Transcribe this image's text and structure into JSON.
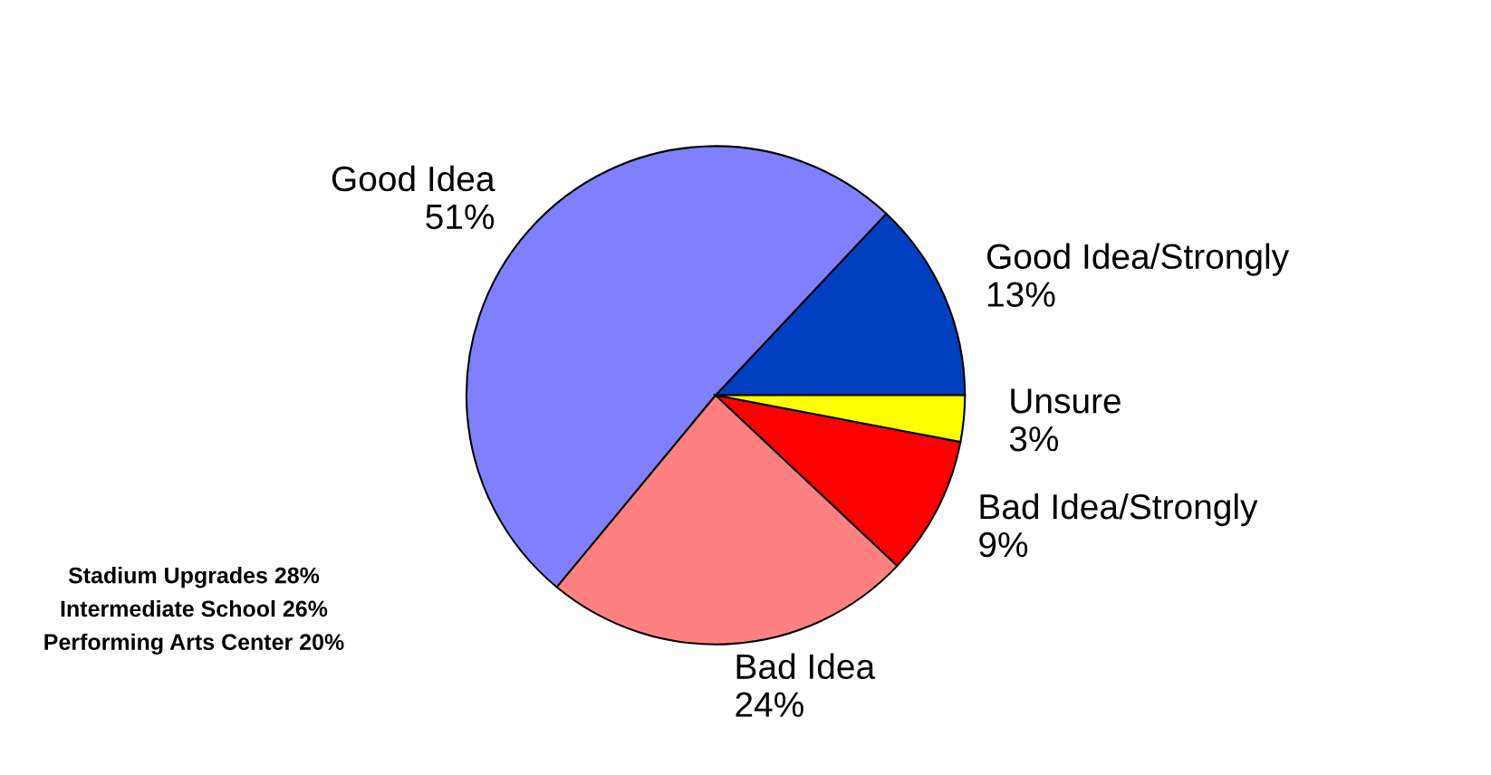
{
  "chart_data": {
    "type": "pie",
    "categories": [
      "Good Idea/Strongly",
      "Good Idea",
      "Bad Idea",
      "Bad Idea/Strongly",
      "Unsure"
    ],
    "values": [
      13,
      51,
      24,
      9,
      3
    ],
    "value_labels": [
      "13%",
      "51%",
      "24%",
      "9%",
      "3%"
    ],
    "colors": [
      "#0040c0",
      "#8080ff",
      "#ff8080",
      "#ff0000",
      "#ffff00"
    ],
    "legend": false,
    "annotations": [
      "Stadium Upgrades 28%",
      "Intermediate School 26%",
      "Performing Arts Center 20%"
    ]
  }
}
